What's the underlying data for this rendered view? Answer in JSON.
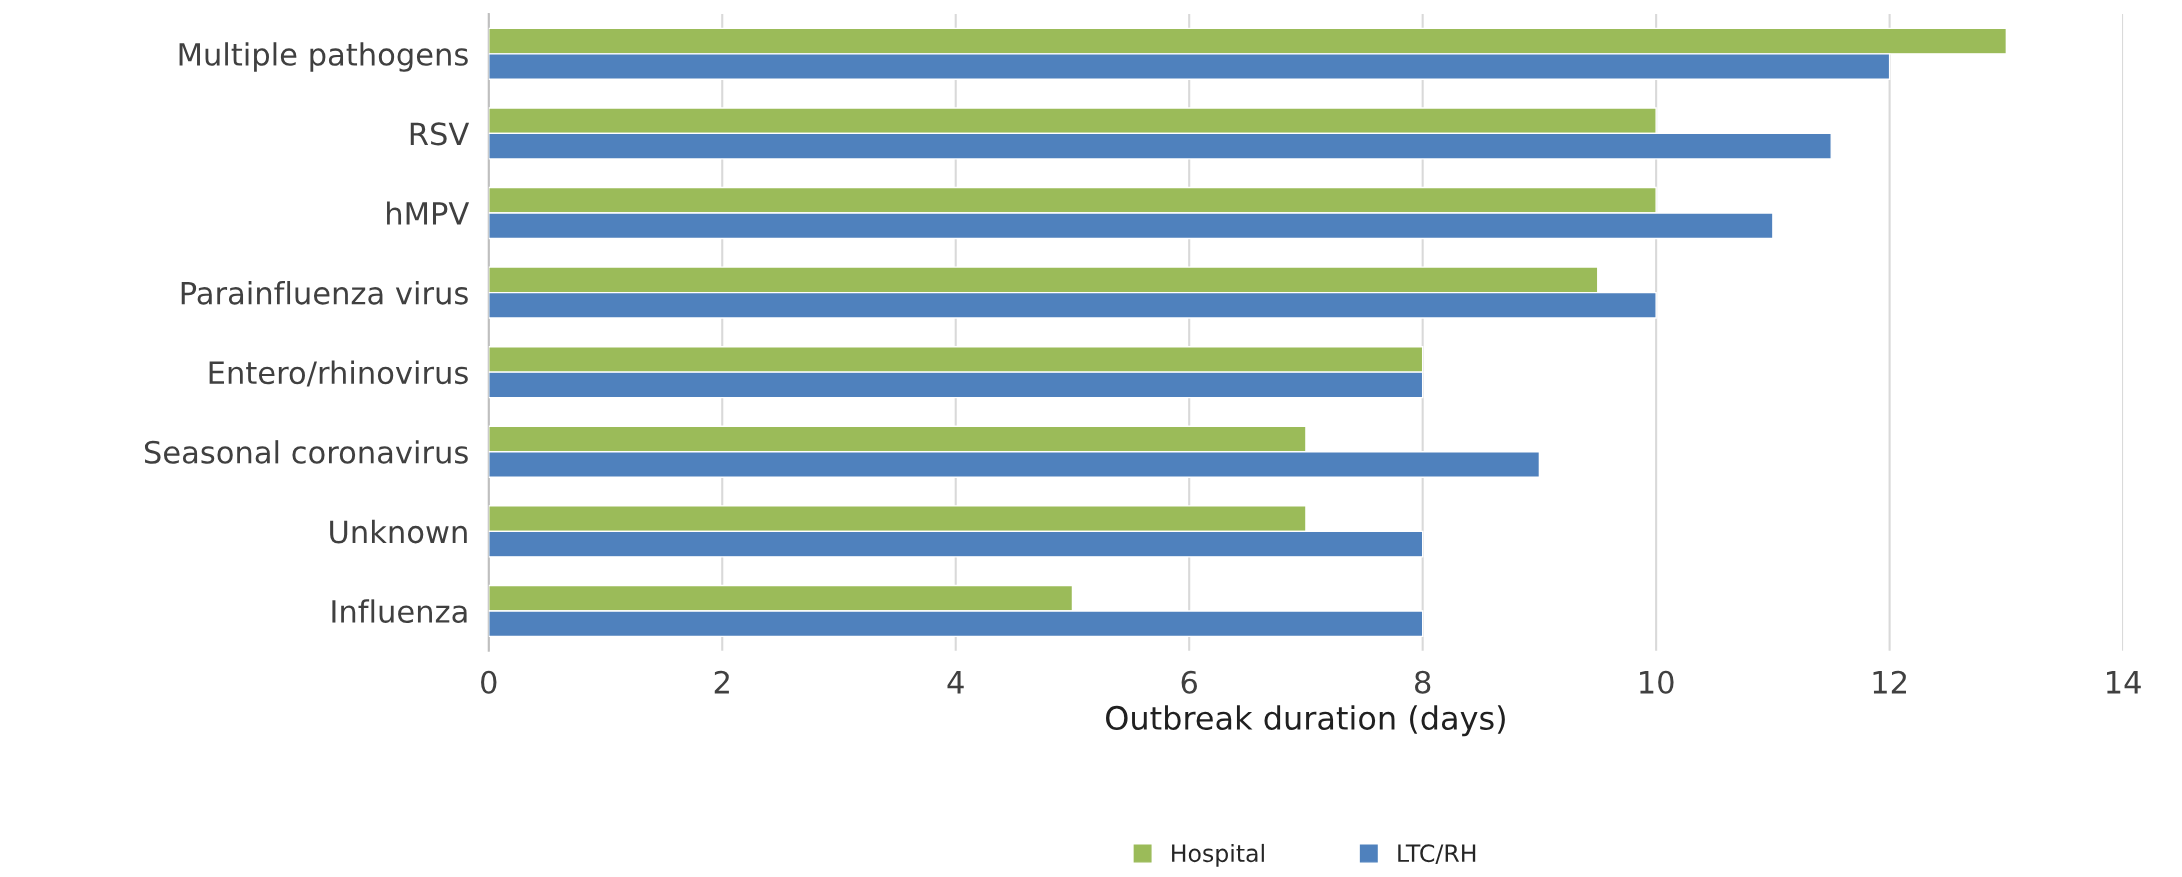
{
  "chart_data": {
    "type": "bar",
    "orientation": "horizontal",
    "xlabel": "Outbreak duration (days)",
    "categories": [
      "Multiple pathogens",
      "RSV",
      "hMPV",
      "Parainfluenza virus",
      "Entero/rhinovirus",
      "Seasonal coronavirus",
      "Unknown",
      "Influenza"
    ],
    "series": [
      {
        "name": "Hospital",
        "color": "#9bbb59",
        "values": [
          13,
          10,
          10,
          9.5,
          8,
          7,
          7,
          5
        ]
      },
      {
        "name": "LTC/RH",
        "color": "#4f81bd",
        "values": [
          12,
          11.5,
          11,
          10,
          8,
          9,
          8,
          8
        ]
      }
    ],
    "xlim": [
      0,
      14
    ],
    "xticks": [
      0,
      2,
      4,
      6,
      8,
      10,
      12,
      14
    ],
    "grid": "x",
    "legend": "bottom"
  }
}
